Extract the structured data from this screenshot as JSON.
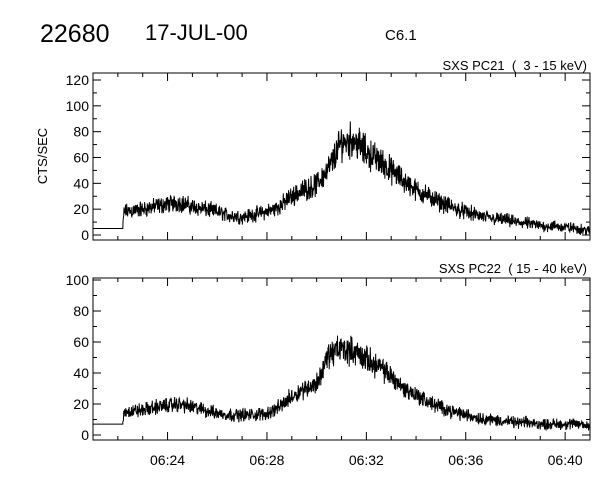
{
  "header": {
    "event_id": "22680",
    "date": "17-JUL-00",
    "goes_class": "C6.1"
  },
  "chart_data": [
    {
      "type": "line",
      "title": "SXS PC21  (  3 - 15 keV)",
      "xlabel": "",
      "ylabel": "CTS/SEC",
      "xlim_minutes_after_0600": [
        21,
        41
      ],
      "ylim": [
        0,
        120
      ],
      "yticks": [
        "0",
        "20",
        "40",
        "60",
        "80",
        "100",
        "120"
      ],
      "ytick_values": [
        0,
        20,
        40,
        60,
        80,
        100,
        120
      ],
      "xticks": [],
      "x_minutes_after_0600": [
        21,
        22.2,
        22.25,
        23,
        23.5,
        24,
        24.5,
        25,
        25.5,
        26,
        26.5,
        27,
        27.5,
        28,
        28.5,
        29,
        29.5,
        30,
        30.5,
        31,
        31.5,
        32,
        32.5,
        33,
        33.5,
        34,
        34.5,
        35,
        35.5,
        36,
        36.5,
        37,
        37.5,
        38,
        38.5,
        39,
        39.5,
        40,
        40.5,
        41
      ],
      "values": [
        5,
        5,
        18,
        20,
        22,
        24,
        25,
        22,
        20,
        18,
        15,
        14,
        16,
        18,
        22,
        30,
        35,
        39,
        52,
        72,
        74,
        64,
        58,
        50,
        42,
        35,
        30,
        25,
        21,
        18,
        15,
        13,
        12,
        10,
        9,
        7,
        7,
        6,
        5,
        3
      ],
      "noise": 5
    },
    {
      "type": "line",
      "title": "SXS PC22  ( 15 - 40 keV)",
      "xlabel": "",
      "ylabel": "",
      "xlim_minutes_after_0600": [
        21,
        41
      ],
      "ylim": [
        0,
        100
      ],
      "yticks": [
        "0",
        "20",
        "40",
        "60",
        "80",
        "100"
      ],
      "ytick_values": [
        0,
        20,
        40,
        60,
        80,
        100
      ],
      "xticks": [
        "06:24",
        "06:28",
        "06:32",
        "06:36",
        "06:40"
      ],
      "xtick_values_minutes_after_0600": [
        24,
        28,
        32,
        36,
        40
      ],
      "x_minutes_after_0600": [
        21,
        22.2,
        22.25,
        23,
        23.5,
        24,
        24.5,
        25,
        25.5,
        26,
        26.5,
        27,
        27.5,
        28,
        28.5,
        29,
        29.5,
        30,
        30.5,
        31,
        31.5,
        32,
        32.5,
        33,
        33.5,
        34,
        34.5,
        35,
        35.5,
        36,
        36.5,
        37,
        37.5,
        38,
        38.5,
        39,
        39.5,
        40,
        40.5,
        41
      ],
      "values": [
        7,
        7,
        15,
        16,
        18,
        19,
        20,
        18,
        16,
        14,
        13,
        13,
        13,
        14,
        18,
        25,
        30,
        33,
        52,
        56,
        54,
        49,
        44,
        38,
        30,
        26,
        21,
        18,
        15,
        13,
        11,
        10,
        9,
        8,
        8,
        7,
        7,
        7,
        7,
        6
      ],
      "noise": 4
    }
  ]
}
